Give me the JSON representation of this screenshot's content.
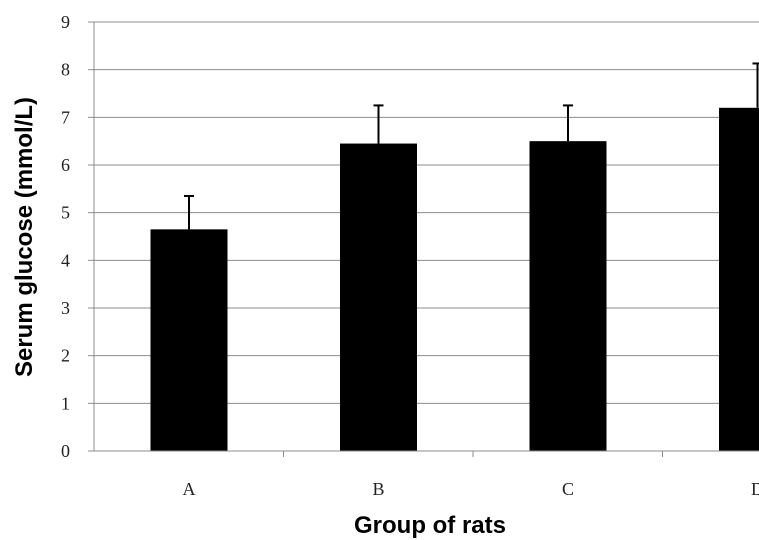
{
  "chart_data": {
    "type": "bar",
    "categories": [
      "A",
      "B",
      "C",
      "D"
    ],
    "values": [
      4.65,
      6.45,
      6.5,
      7.2
    ],
    "error_upper": [
      0.7,
      0.8,
      0.75,
      0.93
    ],
    "xlabel": "Group of rats",
    "ylabel": "Serum glucose (mmol/L)",
    "ylim": [
      0,
      9
    ],
    "yticks": [
      "0",
      "1",
      "2",
      "3",
      "4",
      "5",
      "6",
      "7",
      "8",
      "9"
    ],
    "grid": "horizontal",
    "legend": "none",
    "colors": {
      "bar": "#000000",
      "grid": "#8c8c8c",
      "axis": "#8c8c8c",
      "errorbar": "#000000"
    }
  }
}
